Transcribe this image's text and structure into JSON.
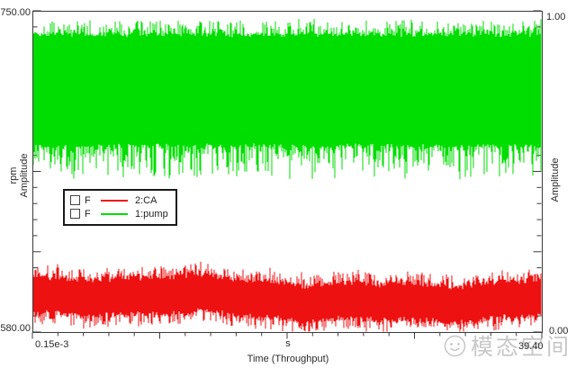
{
  "axes": {
    "left": {
      "unit": "rpm",
      "label": "Amplitude",
      "top_tick": "750.00",
      "bottom_tick": "580.00"
    },
    "right": {
      "label": "Amplitude",
      "top_tick": "1.00",
      "bottom_tick": "0.00"
    },
    "x": {
      "title": "Time (Throughput)",
      "left_tick": "0.15e-3",
      "unit": "s",
      "right_tick": "39.40"
    }
  },
  "legend": {
    "items": [
      {
        "flag": "F",
        "name": "2:CA"
      },
      {
        "flag": "F",
        "name": "1:pump"
      }
    ]
  },
  "watermark": {
    "text": "模态空间",
    "color": "#9a9a9a"
  },
  "chart_data": {
    "type": "line",
    "title": "",
    "xlabel": "Time (Throughput)",
    "x_unit": "s",
    "x_start_label": "0.15e-3",
    "x_end_label": "39.40",
    "x_range_s": [
      0.00015,
      39.4
    ],
    "y_left": {
      "label": "rpm Amplitude",
      "range": [
        580.0,
        750.0
      ]
    },
    "y_right": {
      "label": "Amplitude",
      "range": [
        0.0,
        1.0
      ]
    },
    "grid": false,
    "legend_position": "middle-left",
    "series": [
      {
        "name": "1:pump",
        "channel": 1,
        "axis": "right",
        "color": "#00dd00",
        "seed": 1337,
        "signal": "stationary broadband noise band",
        "envelope": {
          "core_top": 0.93,
          "core_bottom": 0.575,
          "spike_up": 0.048,
          "spike_down": 0.105
        },
        "approx_value_range": [
          0.47,
          0.98
        ]
      },
      {
        "name": "2:CA",
        "channel": 2,
        "axis": "left",
        "color": "#ee1111",
        "seed": 90210,
        "signal": "stationary broadband noise band with slow wobble",
        "envelope": {
          "center": 597.5,
          "core_half": 10.5,
          "spike": 6.5,
          "wobble": 2.2
        },
        "approx_value_range_rpm": [
          580,
          616
        ]
      }
    ]
  }
}
